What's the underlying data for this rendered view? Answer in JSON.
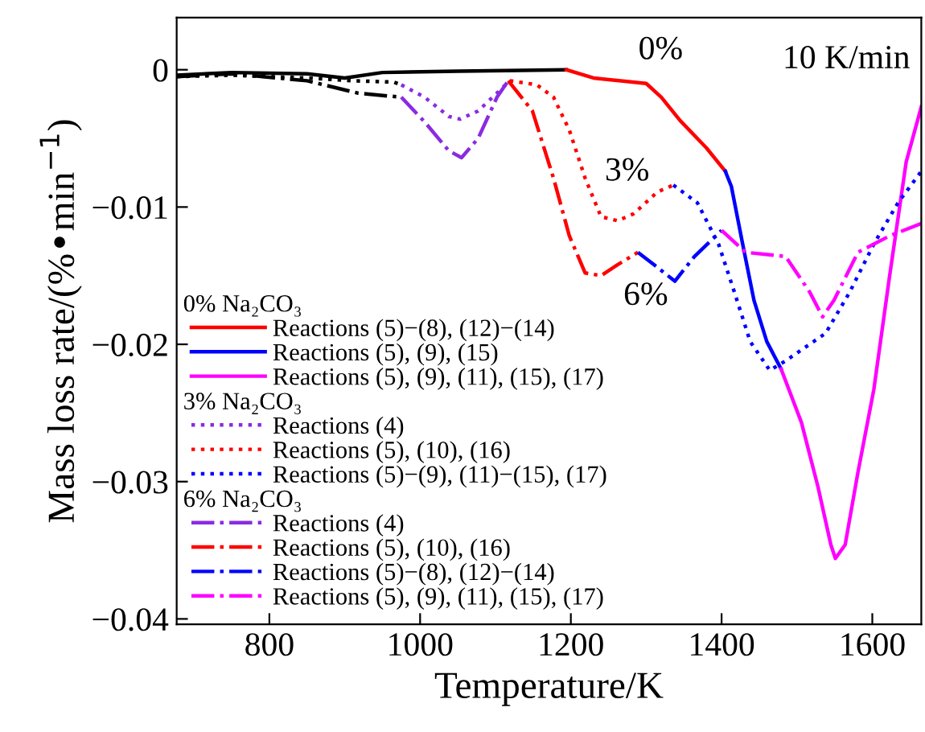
{
  "chart_data": {
    "type": "line",
    "xlabel": "Temperature/K",
    "ylabel": "Mass loss rate/(%•min$^{−1}$)",
    "xlim": [
      677,
      1665
    ],
    "ylim": [
      -0.0404,
      0.0038
    ],
    "xticks": [
      800,
      1000,
      1200,
      1400,
      1600
    ],
    "yticks": [
      0,
      {
        "value": -0.01,
        "label": "−0.01"
      },
      {
        "value": -0.02,
        "label": "−0.02"
      },
      {
        "value": -0.03,
        "label": "−0.03"
      },
      {
        "value": -0.04,
        "label": "−0.04"
      }
    ],
    "grid": false,
    "legend": "bottom left",
    "annotations": [
      "10 K/min",
      "0%",
      "3%",
      "6%",
      "0% Na₂CO₃",
      "3% Na₂CO₃",
      "6% Na₂CO₃"
    ],
    "series": [
      {
        "color": "#000000",
        "line_style": "solid",
        "x": [
          677,
          750,
          850,
          900,
          950,
          1050,
          1194
        ],
        "values": [
          -0.0004,
          -0.0002,
          -0.0003,
          -0.0006,
          -0.0002,
          -0.0001,
          0
        ]
      },
      {
        "name": "Reactions (5)−(8), (12)−(14)",
        "color": "#ff0000",
        "line_style": "solid",
        "x": [
          1194,
          1230,
          1300,
          1320,
          1345,
          1380,
          1405
        ],
        "values": [
          0,
          -0.0006,
          -0.001,
          -0.002,
          -0.0037,
          -0.0057,
          -0.0074
        ]
      },
      {
        "name": "Reactions (5), (9), (15)",
        "color": "#0000ff",
        "line_style": "solid",
        "x": [
          1405,
          1413,
          1428,
          1443,
          1460,
          1479
        ],
        "values": [
          -0.0074,
          -0.0085,
          -0.0127,
          -0.0168,
          -0.0198,
          -0.0218
        ]
      },
      {
        "name": "Reactions (5), (9), (11), (15), (17)",
        "color": "#ff00ff",
        "line_style": "solid",
        "x": [
          1479,
          1506,
          1528,
          1545,
          1551,
          1564,
          1581,
          1602,
          1623,
          1645,
          1665
        ],
        "values": [
          -0.0218,
          -0.0257,
          -0.0304,
          -0.0346,
          -0.0356,
          -0.0346,
          -0.0293,
          -0.0233,
          -0.015,
          -0.0067,
          -0.0027
        ]
      },
      {
        "color": "#000000",
        "line_style": "dotted",
        "x": [
          677,
          750,
          850,
          910,
          965,
          975
        ],
        "values": [
          -0.0005,
          -0.0004,
          -0.0006,
          -0.0008,
          -0.0009,
          -0.0011
        ]
      },
      {
        "name": "Reactions (4)",
        "color": "#8a2be2",
        "line_style": "dotted",
        "x": [
          975,
          1006,
          1038,
          1053,
          1077,
          1102,
          1119
        ],
        "values": [
          -0.0011,
          -0.002,
          -0.0034,
          -0.0036,
          -0.003,
          -0.0017,
          -0.0008
        ]
      },
      {
        "name": "Reactions (5), (10), (16)",
        "color": "#ff0000",
        "line_style": "dotted",
        "x": [
          1119,
          1155,
          1177,
          1198,
          1219,
          1240,
          1262,
          1283,
          1315,
          1336
        ],
        "values": [
          -0.0008,
          -0.0011,
          -0.002,
          -0.0044,
          -0.0079,
          -0.0107,
          -0.011,
          -0.0105,
          -0.0089,
          -0.0084
        ]
      },
      {
        "name": "Reactions (5)−(9), (11)−(15), (17)",
        "color": "#0000ff",
        "line_style": "dotted",
        "x": [
          1336,
          1368,
          1396,
          1417,
          1438,
          1464,
          1485,
          1538,
          1570,
          1602,
          1634,
          1665
        ],
        "values": [
          -0.0084,
          -0.0097,
          -0.0127,
          -0.0162,
          -0.0198,
          -0.0219,
          -0.0212,
          -0.0192,
          -0.0162,
          -0.0127,
          -0.0097,
          -0.0074
        ]
      },
      {
        "color": "#000000",
        "line_style": "dashdot",
        "x": [
          677,
          750,
          850,
          917,
          975
        ],
        "values": [
          -0.0005,
          -0.0003,
          -0.0008,
          -0.0017,
          -0.002
        ]
      },
      {
        "name": "Reactions (4)",
        "color": "#8a2be2",
        "line_style": "dashdot",
        "x": [
          975,
          1006,
          1038,
          1055,
          1077,
          1102,
          1117
        ],
        "values": [
          -0.002,
          -0.0038,
          -0.0059,
          -0.0064,
          -0.005,
          -0.002,
          -0.0008
        ]
      },
      {
        "name": "Reactions (5), (10), (16)",
        "color": "#ff0000",
        "line_style": "dashdot",
        "x": [
          1117,
          1149,
          1177,
          1198,
          1219,
          1240,
          1262,
          1289
        ],
        "values": [
          -0.0008,
          -0.003,
          -0.0079,
          -0.0121,
          -0.0148,
          -0.015,
          -0.0142,
          -0.0133
        ]
      },
      {
        "name": "Reactions (5)−(8), (12)−(14)",
        "color": "#0000ff",
        "line_style": "dashdot",
        "x": [
          1289,
          1315,
          1338,
          1364,
          1400
        ],
        "values": [
          -0.0133,
          -0.0144,
          -0.0154,
          -0.0136,
          -0.0117
        ]
      },
      {
        "name": "Reactions (5), (9), (11), (15), (17)",
        "color": "#ff00ff",
        "line_style": "dashdot",
        "x": [
          1400,
          1432,
          1485,
          1517,
          1534,
          1549,
          1581,
          1623,
          1665
        ],
        "values": [
          -0.0117,
          -0.0133,
          -0.0136,
          -0.0162,
          -0.018,
          -0.0168,
          -0.0133,
          -0.0121,
          -0.0112
        ]
      }
    ]
  }
}
